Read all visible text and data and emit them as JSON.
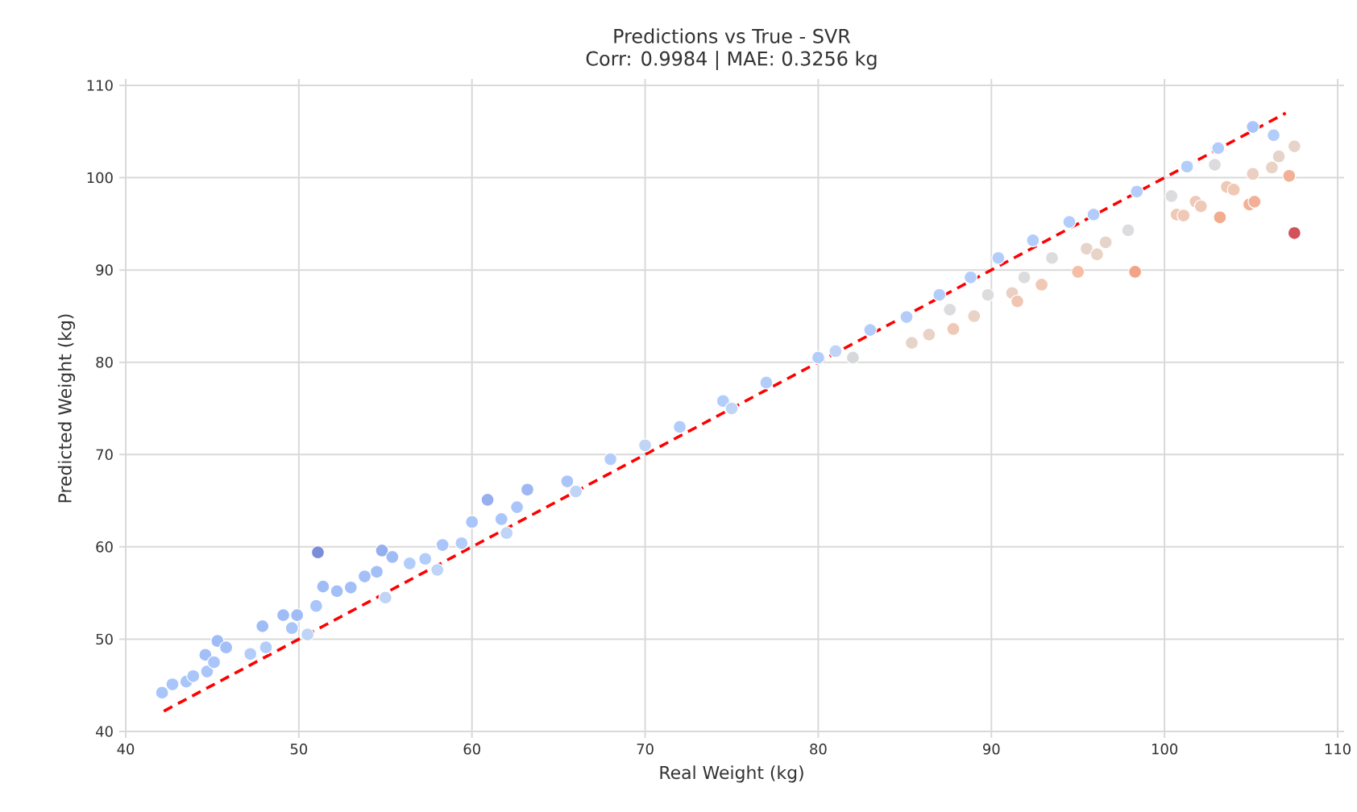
{
  "chart_data": {
    "type": "scatter",
    "title": "Predictions vs True - SVR",
    "subtitle": "Corr: 0.9984 | MAE: 0.3256 kg",
    "xlabel": "Real Weight (kg)",
    "ylabel": "Predicted Weight (kg)",
    "xlim": [
      40,
      110
    ],
    "ylim": [
      40,
      110
    ],
    "xticks": [
      40,
      50,
      60,
      70,
      80,
      90,
      100,
      110
    ],
    "yticks": [
      40,
      50,
      60,
      70,
      80,
      90,
      100,
      110
    ],
    "grid": true,
    "marker": "circle",
    "series": [
      {
        "x": [
          42.1,
          42.7,
          43.5,
          43.9,
          44.7,
          44.6,
          45.3,
          45.8,
          45.1,
          47.9,
          47.2,
          48.1,
          49.1,
          49.6,
          49.9,
          51.1,
          51.4,
          51.0,
          52.2,
          53.0,
          53.8,
          54.5,
          54.8,
          55.4,
          56.4,
          57.3,
          58.3,
          59.4,
          60.0,
          60.9,
          61.7,
          63.2,
          62.6,
          50.5,
          55.0,
          58.0,
          62.0,
          65.5,
          66.0,
          68.0,
          70.0,
          72.0,
          74.5,
          75.0,
          77.0,
          80.0,
          81.0,
          82.0,
          83.0,
          85.1,
          87.0,
          88.8,
          90.4,
          92.4,
          94.5,
          95.9,
          98.4,
          101.3,
          103.1,
          105.1,
          106.3,
          85.4,
          86.4,
          87.8,
          89.0,
          87.6,
          89.8,
          91.9,
          93.5,
          97.9,
          100.4,
          102.9,
          91.2,
          91.5,
          92.9,
          95.0,
          95.5,
          96.1,
          96.6,
          98.3,
          100.7,
          101.1,
          101.8,
          102.1,
          103.6,
          104.0,
          103.2,
          104.9,
          105.2,
          105.1,
          106.2,
          106.6,
          107.2,
          107.5,
          107.5
        ],
        "values": [
          44.2,
          45.1,
          45.4,
          46.0,
          46.5,
          48.3,
          49.8,
          49.1,
          47.5,
          51.4,
          48.4,
          49.1,
          52.6,
          51.2,
          52.6,
          59.4,
          55.7,
          53.6,
          55.2,
          55.6,
          56.8,
          57.3,
          59.6,
          58.9,
          58.2,
          58.7,
          60.2,
          60.4,
          62.7,
          65.1,
          63.0,
          66.2,
          64.3,
          50.5,
          54.5,
          57.5,
          61.5,
          67.1,
          66.0,
          69.5,
          71.0,
          73.0,
          75.8,
          75.0,
          77.8,
          80.5,
          81.2,
          80.5,
          83.5,
          84.9,
          87.3,
          89.2,
          91.3,
          93.2,
          95.2,
          96.0,
          98.5,
          101.2,
          103.2,
          105.5,
          104.6,
          82.1,
          83.0,
          83.6,
          85.0,
          85.7,
          87.3,
          89.2,
          91.3,
          94.3,
          98.0,
          101.4,
          87.5,
          86.6,
          88.4,
          89.8,
          92.3,
          91.7,
          93.0,
          89.8,
          96.0,
          95.9,
          97.4,
          96.9,
          99.0,
          98.7,
          95.7,
          97.1,
          97.4,
          100.4,
          101.1,
          102.3,
          100.2,
          103.4,
          94.0
        ],
        "colors": [
          "#a9c5fa",
          "#a9c5fa",
          "#a9c5fa",
          "#a9c5fa",
          "#a9c5fa",
          "#a3bff8",
          "#a0bcf7",
          "#a3bff8",
          "#a9c5fa",
          "#a0bcf7",
          "#b3cdfb",
          "#b3cdfb",
          "#a0bcf7",
          "#a9c5fa",
          "#a0bcf7",
          "#7b8cd9",
          "#a0bcf7",
          "#a9c5fa",
          "#a3bff8",
          "#a3bff8",
          "#a3bff8",
          "#a3bff8",
          "#94aeee",
          "#a0bcf7",
          "#b3cdfb",
          "#b3cdfb",
          "#a9c5fa",
          "#b3cdfb",
          "#a9c5fa",
          "#96afef",
          "#a9c5fa",
          "#9fb7f3",
          "#a9c5fa",
          "#c0d4f5",
          "#c0d4f5",
          "#c0d4f5",
          "#c0d4f5",
          "#a9c5fa",
          "#c0d4f5",
          "#b3cdfb",
          "#c0d4f5",
          "#b3cdfb",
          "#b3cdfb",
          "#c0d4f5",
          "#b3cdfb",
          "#b3cdfb",
          "#c0d4f5",
          "#d7d8dc",
          "#b3cdfb",
          "#b3cdfb",
          "#b3cdfb",
          "#b3cdfb",
          "#b3cdfb",
          "#b3cdfb",
          "#b3cdfb",
          "#b3cdfb",
          "#b3cdfb",
          "#b3cdfb",
          "#b3cdfb",
          "#a9c5fa",
          "#b3cdfb",
          "#e6d4cb",
          "#e9d2c6",
          "#efc9b7",
          "#e9d2c6",
          "#dcdcde",
          "#dcdcde",
          "#dcdcde",
          "#dcdcde",
          "#dcdcde",
          "#dcdcde",
          "#dcdcde",
          "#ebcfc2",
          "#f0c6b3",
          "#f0c9b6",
          "#f4bda4",
          "#e6d4cb",
          "#e9d2c6",
          "#e6d4cb",
          "#f3a486",
          "#f0c9b6",
          "#f0c9b6",
          "#efc9b7",
          "#efc9b7",
          "#efc9b7",
          "#f0c9b6",
          "#f2ac8e",
          "#f2b197",
          "#f2b197",
          "#ebcfc2",
          "#e9d2c6",
          "#e6d4cb",
          "#f2b197",
          "#e6d4cb",
          "#d2515a"
        ]
      },
      {
        "type": "line",
        "x": [
          42.2,
          107.0
        ],
        "values": [
          42.2,
          107.0
        ],
        "color": "#ff0000",
        "line_style": "dashed",
        "marker": "none"
      }
    ]
  }
}
